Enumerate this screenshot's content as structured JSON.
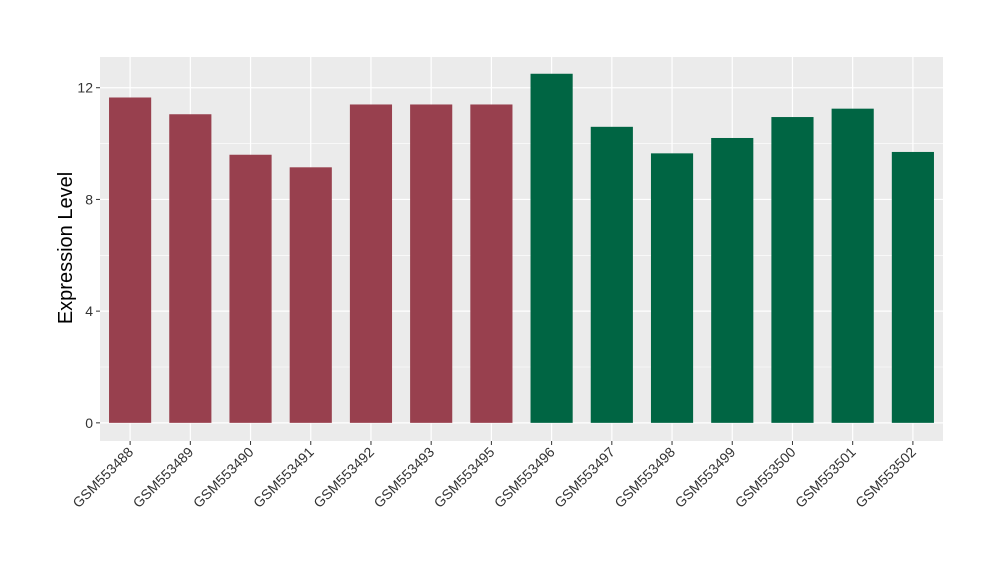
{
  "chart_data": {
    "type": "bar",
    "title": "",
    "xlabel": "",
    "ylabel": "Expression Level",
    "ylim": [
      -0.65,
      13.1
    ],
    "yticks": [
      0,
      4,
      8,
      12
    ],
    "grid": true,
    "legend": "none",
    "categories": [
      "GSM553488",
      "GSM553489",
      "GSM553490",
      "GSM553491",
      "GSM553492",
      "GSM553493",
      "GSM553495",
      "GSM553496",
      "GSM553497",
      "GSM553498",
      "GSM553499",
      "GSM553500",
      "GSM553501",
      "GSM553502"
    ],
    "values": [
      11.65,
      11.05,
      9.6,
      9.15,
      11.4,
      11.4,
      11.4,
      12.5,
      10.6,
      9.65,
      10.2,
      10.95,
      11.25,
      9.7
    ],
    "groups": [
      "a",
      "a",
      "a",
      "a",
      "a",
      "a",
      "a",
      "b",
      "b",
      "b",
      "b",
      "b",
      "b",
      "b"
    ],
    "colors": {
      "a": "#98404e",
      "b": "#006543",
      "panel": "#ebebeb",
      "grid": "#ffffff"
    }
  }
}
